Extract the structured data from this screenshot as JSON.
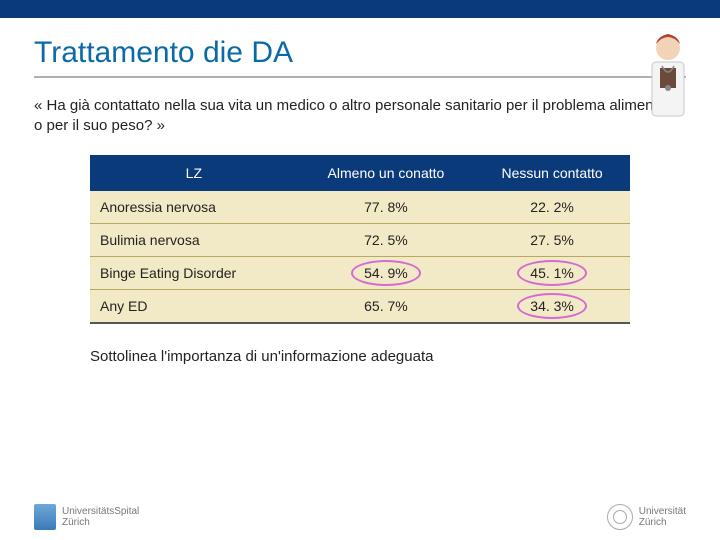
{
  "title": "Trattamento die DA",
  "question": "« Ha già contattato nella sua vita un medico o altro personale sanitario per il problema alimentare o per il suo peso? »",
  "table": {
    "header_bg": "#0a3a7a",
    "header_color": "#ffffff",
    "body_bg": "#f2eac6",
    "row_border": "#b9a95e",
    "columns": [
      "LZ",
      "Almeno un conatto",
      "Nessun contatto"
    ],
    "rows": [
      {
        "label": "Anoressia nervosa",
        "v1": "77. 8%",
        "v2": "22. 2%",
        "hl1": false,
        "hl2": false
      },
      {
        "label": "Bulimia nervosa",
        "v1": "72. 5%",
        "v2": "27. 5%",
        "hl1": false,
        "hl2": false
      },
      {
        "label": "Binge Eating Disorder",
        "v1": "54. 9%",
        "v2": "45. 1%",
        "hl1": true,
        "hl2": true
      },
      {
        "label": "Any ED",
        "v1": "65. 7%",
        "v2": "34. 3%",
        "hl1": false,
        "hl2": true
      }
    ],
    "highlight_color": "#d46bd4"
  },
  "footnote": "Sottolinea l'importanza di un'informazione adeguata",
  "logos": {
    "left_line1": "UniversitätsSpital",
    "left_line2": "Zürich",
    "right_line1": "Universität",
    "right_line2": "Zürich"
  }
}
